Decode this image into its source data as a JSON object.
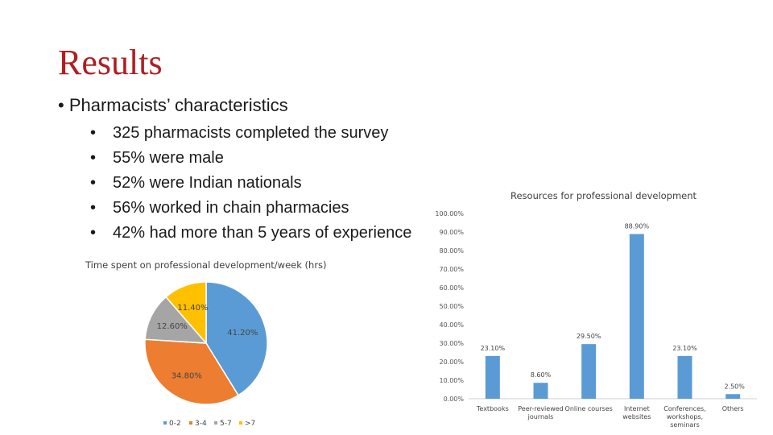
{
  "slide": {
    "title": "Results",
    "main_bullet": "Pharmacists’ characteristics",
    "bullets": [
      "325 pharmacists completed the survey",
      "55% were male",
      "52% were Indian nationals",
      "56% worked in chain pharmacies",
      "42% had more than 5 years of experience"
    ]
  },
  "colors": {
    "title": "#b01e22"
  },
  "chart_data": [
    {
      "type": "pie",
      "title": "Time spent on professional development/week (hrs)",
      "categories": [
        "0-2",
        "3-4",
        "5-7",
        ">7"
      ],
      "values": [
        41.2,
        34.8,
        12.6,
        11.4
      ],
      "labels": [
        "41.20%",
        "34.80%",
        "12.60%",
        "11.40%"
      ],
      "colors": [
        "#5b9bd5",
        "#ed7d31",
        "#a5a5a5",
        "#ffc000"
      ],
      "legend": "bottom"
    },
    {
      "type": "bar",
      "title": "Resources for professional development",
      "categories": [
        "Textbooks",
        "Peer-reviewed journals",
        "Online courses",
        "Internet websites",
        "Conferences, workshops, seminars",
        "Others"
      ],
      "category_lines": [
        [
          "Textbooks"
        ],
        [
          "Peer-reviewed",
          "journals"
        ],
        [
          "Online courses"
        ],
        [
          "Internet",
          "websites"
        ],
        [
          "Conferences,",
          "workshops,",
          "seminars"
        ],
        [
          "Others"
        ]
      ],
      "values": [
        23.1,
        8.6,
        29.5,
        88.9,
        23.1,
        2.5
      ],
      "labels": [
        "23.10%",
        "8.60%",
        "29.50%",
        "88.90%",
        "23.10%",
        "2.50%"
      ],
      "ylim": [
        0,
        100
      ],
      "yticks": [
        "0.00%",
        "10.00%",
        "20.00%",
        "30.00%",
        "40.00%",
        "50.00%",
        "60.00%",
        "70.00%",
        "80.00%",
        "90.00%",
        "100.00%"
      ],
      "color": "#5b9bd5",
      "grid": false
    }
  ]
}
